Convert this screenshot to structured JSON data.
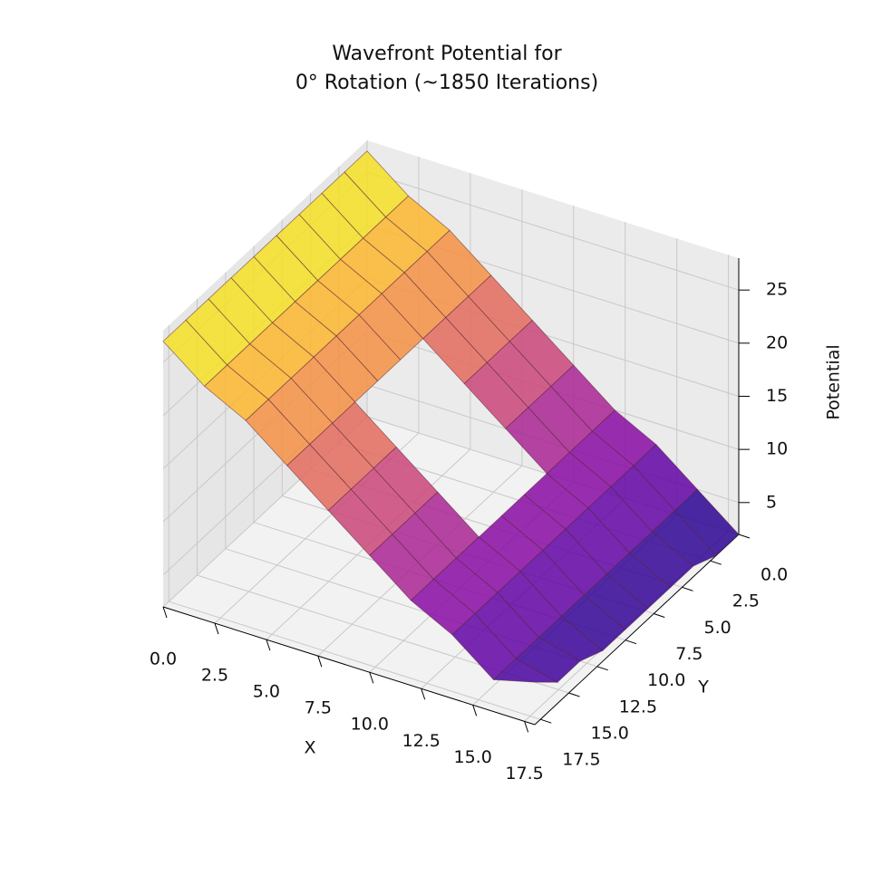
{
  "chart_data": {
    "type": "surface",
    "title": [
      "Wavefront Potential for",
      "0° Rotation (~1850 Iterations)"
    ],
    "xlabel": "X",
    "ylabel": "Y",
    "zlabel": "Potential",
    "colormap": "plasma",
    "x": [
      0,
      2,
      4,
      6,
      8,
      10,
      12,
      14,
      16,
      18
    ],
    "y": [
      0,
      2,
      4,
      6,
      8,
      10,
      12,
      14,
      16,
      18
    ],
    "z": [
      [
        27,
        24,
        22,
        19,
        16,
        13,
        10,
        8,
        5,
        2
      ],
      [
        27,
        24,
        22,
        19,
        16,
        13,
        10,
        8,
        5,
        2
      ],
      [
        27,
        24,
        22,
        19,
        16,
        13,
        10,
        8,
        5,
        3
      ],
      [
        27,
        24,
        22,
        19,
        16,
        13,
        10,
        8,
        5,
        3
      ],
      [
        27,
        24,
        22,
        19,
        null,
        null,
        10,
        8,
        5,
        3
      ],
      [
        27,
        24,
        22,
        19,
        null,
        null,
        10,
        8,
        5,
        3
      ],
      [
        27,
        24,
        22,
        19,
        16,
        13,
        10,
        8,
        5,
        3
      ],
      [
        27,
        24,
        22,
        19,
        16,
        13,
        10,
        8,
        5,
        4
      ],
      [
        27,
        24,
        22,
        19,
        16,
        13,
        10,
        8,
        5,
        4
      ],
      [
        27,
        24,
        22,
        19,
        16,
        13,
        10,
        8,
        5,
        6
      ]
    ],
    "xlim": [
      0,
      18
    ],
    "ylim": [
      0,
      18
    ],
    "zlim": [
      2,
      28
    ],
    "xticks": [
      {
        "value": 0,
        "label": "0.0"
      },
      {
        "value": 2.5,
        "label": "2.5"
      },
      {
        "value": 5,
        "label": "5.0"
      },
      {
        "value": 7.5,
        "label": "7.5"
      },
      {
        "value": 10,
        "label": "10.0"
      },
      {
        "value": 12.5,
        "label": "12.5"
      },
      {
        "value": 15,
        "label": "15.0"
      },
      {
        "value": 17.5,
        "label": "17.5"
      }
    ],
    "yticks": [
      {
        "value": 0,
        "label": "0.0"
      },
      {
        "value": 2.5,
        "label": "2.5"
      },
      {
        "value": 5,
        "label": "5.0"
      },
      {
        "value": 7.5,
        "label": "7.5"
      },
      {
        "value": 10,
        "label": "10.0"
      },
      {
        "value": 12.5,
        "label": "12.5"
      },
      {
        "value": 15,
        "label": "15.0"
      },
      {
        "value": 17.5,
        "label": "17.5"
      }
    ],
    "zticks": [
      5,
      10,
      15,
      20,
      25
    ],
    "grid": true
  }
}
